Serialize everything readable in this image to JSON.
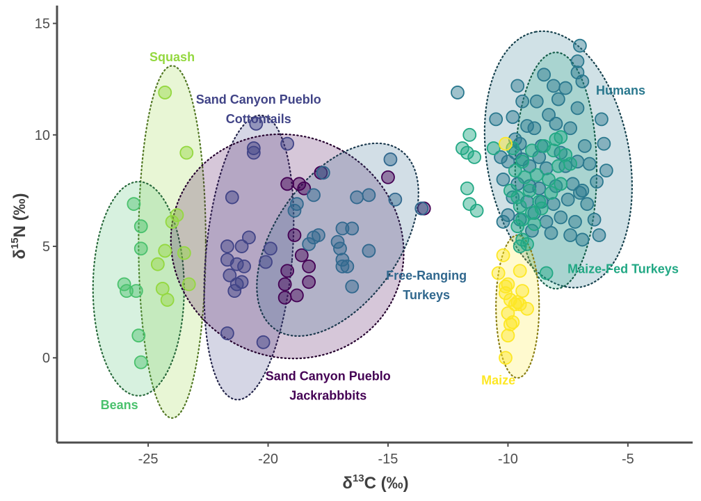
{
  "chart_data": {
    "type": "scatter",
    "xlabel": "δ13C (‰)",
    "ylabel": "δ15N (‰)",
    "xlim": [
      -28.8,
      -2.3
    ],
    "ylim": [
      -3.8,
      15.8
    ],
    "x_ticks": [
      {
        "value": -25,
        "label": "-25"
      },
      {
        "value": -20,
        "label": "-20"
      },
      {
        "value": -15,
        "label": "-15"
      },
      {
        "value": -10,
        "label": "-10"
      },
      {
        "value": -5,
        "label": "-5"
      }
    ],
    "y_ticks": [
      {
        "value": 0,
        "label": "0"
      },
      {
        "value": 5,
        "label": "5"
      },
      {
        "value": 10,
        "label": "10"
      },
      {
        "value": 15,
        "label": "15"
      }
    ],
    "grid": false,
    "legend": "none",
    "series": [
      {
        "name": "Squash",
        "color": "#94d840",
        "label": {
          "lines": [
            "Squash"
          ],
          "x": -24.0,
          "y": 13.3
        },
        "ellipse": {
          "cx": -24.0,
          "cy": 5.2,
          "rx": 1.4,
          "ry": 7.9,
          "angle": 0
        },
        "points": [
          [
            -24.3,
            11.9
          ],
          [
            -23.4,
            9.2
          ],
          [
            -24.0,
            6.1
          ],
          [
            -23.8,
            6.4
          ],
          [
            -24.3,
            4.8
          ],
          [
            -24.6,
            4.2
          ],
          [
            -24.2,
            2.6
          ],
          [
            -23.5,
            4.7
          ],
          [
            -23.3,
            3.3
          ],
          [
            -24.4,
            3.1
          ]
        ]
      },
      {
        "name": "Beans",
        "color": "#4ac16d",
        "label": {
          "lines": [
            "Beans"
          ],
          "x": -26.2,
          "y": -2.3
        },
        "ellipse": {
          "cx": -25.4,
          "cy": 3.1,
          "rx": 1.9,
          "ry": 4.8,
          "angle": 0
        },
        "points": [
          [
            -25.6,
            6.9
          ],
          [
            -25.3,
            5.9
          ],
          [
            -25.3,
            4.9
          ],
          [
            -26.0,
            3.3
          ],
          [
            -25.9,
            3.0
          ],
          [
            -25.5,
            3.0
          ],
          [
            -25.4,
            1.0
          ],
          [
            -25.3,
            -0.2
          ]
        ]
      },
      {
        "name": "Sand Canyon Pueblo Cottontails",
        "color": "#414487",
        "label": {
          "lines": [
            "Sand Canyon Pueblo",
            "Cottontails"
          ],
          "x": -20.4,
          "y": 11.4
        },
        "ellipse": {
          "cx": -20.8,
          "cy": 4.5,
          "rx": 1.8,
          "ry": 6.4,
          "angle": 5
        },
        "points": [
          [
            -20.5,
            10.5
          ],
          [
            -20.6,
            9.4
          ],
          [
            -20.6,
            9.2
          ],
          [
            -21.5,
            7.2
          ],
          [
            -21.7,
            5.0
          ],
          [
            -21.1,
            5.0
          ],
          [
            -20.8,
            5.4
          ],
          [
            -21.7,
            4.4
          ],
          [
            -21.3,
            4.2
          ],
          [
            -21.0,
            4.1
          ],
          [
            -21.6,
            3.7
          ],
          [
            -21.3,
            3.3
          ],
          [
            -21.1,
            3.4
          ],
          [
            -21.4,
            3.0
          ],
          [
            -20.1,
            4.3
          ],
          [
            -19.9,
            4.9
          ],
          [
            -20.2,
            0.7
          ],
          [
            -21.7,
            1.1
          ],
          [
            -19.2,
            9.6
          ]
        ]
      },
      {
        "name": "Sand Canyon Pueblo Jackrabbbits",
        "color": "#440154",
        "label": {
          "lines": [
            "Sand Canyon Pueblo",
            "Jackrabbbits"
          ],
          "x": -17.5,
          "y": -1.0
        },
        "ellipse": {
          "cx": -19.2,
          "cy": 5.0,
          "rx": 4.6,
          "ry": 5.3,
          "angle": -62
        },
        "points": [
          [
            -19.2,
            7.8
          ],
          [
            -18.7,
            7.8
          ],
          [
            -18.5,
            7.6
          ],
          [
            -17.8,
            8.3
          ],
          [
            -18.3,
            4.1
          ],
          [
            -18.6,
            4.6
          ],
          [
            -18.9,
            5.5
          ],
          [
            -19.2,
            3.9
          ],
          [
            -19.3,
            3.3
          ],
          [
            -19.3,
            2.7
          ],
          [
            -18.3,
            3.4
          ],
          [
            -18.8,
            2.8
          ],
          [
            -15.0,
            8.1
          ],
          [
            -13.5,
            6.7
          ]
        ]
      },
      {
        "name": "Free-Ranging Turkeys",
        "color": "#31688e",
        "label": {
          "lines": [
            "Free-Ranging",
            "Turkeys"
          ],
          "x": -13.4,
          "y": 3.5
        },
        "ellipse": {
          "cx": -17.1,
          "cy": 5.3,
          "rx": 2.6,
          "ry": 4.9,
          "angle": 35
        },
        "points": [
          [
            -16.3,
            7.2
          ],
          [
            -15.8,
            7.3
          ],
          [
            -16.5,
            5.8
          ],
          [
            -16.9,
            5.8
          ],
          [
            -17.1,
            5.2
          ],
          [
            -17.0,
            4.9
          ],
          [
            -16.9,
            4.4
          ],
          [
            -16.7,
            4.1
          ],
          [
            -16.5,
            3.2
          ],
          [
            -16.9,
            4.1
          ],
          [
            -17.9,
            5.5
          ],
          [
            -18.1,
            5.4
          ],
          [
            -18.3,
            5.1
          ],
          [
            -17.7,
            8.3
          ],
          [
            -18.1,
            7.3
          ],
          [
            -18.9,
            6.6
          ],
          [
            -15.8,
            4.8
          ],
          [
            -14.9,
            8.9
          ],
          [
            -14.7,
            7.1
          ],
          [
            -13.6,
            6.7
          ],
          [
            -18.8,
            6.9
          ]
        ]
      },
      {
        "name": "Humans",
        "color": "#2a788e",
        "label": {
          "lines": [
            "Humans"
          ],
          "x": -5.3,
          "y": 11.8
        },
        "ellipse": {
          "cx": -7.9,
          "cy": 8.9,
          "rx": 5.4,
          "ry": 3.2,
          "angle": -100
        },
        "points": [
          [
            -7.0,
            14.0
          ],
          [
            -7.1,
            13.3
          ],
          [
            -7.1,
            12.8
          ],
          [
            -8.5,
            12.7
          ],
          [
            -9.6,
            12.2
          ],
          [
            -7.6,
            12.1
          ],
          [
            -6.9,
            12.4
          ],
          [
            -8.1,
            12.2
          ],
          [
            -7.9,
            11.6
          ],
          [
            -9.4,
            11.5
          ],
          [
            -8.8,
            11.5
          ],
          [
            -8.3,
            10.9
          ],
          [
            -7.1,
            11.2
          ],
          [
            -10.5,
            10.7
          ],
          [
            -9.8,
            10.8
          ],
          [
            -9.2,
            10.4
          ],
          [
            -8.9,
            10.3
          ],
          [
            -8.0,
            10.5
          ],
          [
            -7.4,
            10.3
          ],
          [
            -6.1,
            10.7
          ],
          [
            -9.7,
            9.8
          ],
          [
            -9.5,
            9.6
          ],
          [
            -8.6,
            9.5
          ],
          [
            -7.8,
            9.2
          ],
          [
            -6.8,
            9.5
          ],
          [
            -6.0,
            9.6
          ],
          [
            -10.3,
            9.0
          ],
          [
            -10.0,
            8.8
          ],
          [
            -9.4,
            8.9
          ],
          [
            -9.1,
            8.6
          ],
          [
            -8.4,
            8.5
          ],
          [
            -7.6,
            8.6
          ],
          [
            -7.1,
            8.8
          ],
          [
            -6.6,
            8.7
          ],
          [
            -5.9,
            8.4
          ],
          [
            -10.2,
            8.0
          ],
          [
            -9.6,
            7.8
          ],
          [
            -9.1,
            7.7
          ],
          [
            -8.7,
            7.6
          ],
          [
            -8.0,
            7.7
          ],
          [
            -7.3,
            7.8
          ],
          [
            -6.9,
            7.5
          ],
          [
            -6.3,
            7.9
          ],
          [
            -9.8,
            7.2
          ],
          [
            -9.2,
            7.0
          ],
          [
            -8.6,
            7.0
          ],
          [
            -8.1,
            6.9
          ],
          [
            -7.5,
            7.1
          ],
          [
            -6.7,
            6.9
          ],
          [
            -10.0,
            6.4
          ],
          [
            -9.5,
            6.2
          ],
          [
            -8.9,
            6.5
          ],
          [
            -8.4,
            6.1
          ],
          [
            -7.8,
            6.3
          ],
          [
            -7.2,
            6.1
          ],
          [
            -6.4,
            6.2
          ],
          [
            -9.0,
            5.7
          ],
          [
            -8.2,
            5.6
          ],
          [
            -7.4,
            5.5
          ],
          [
            -6.9,
            5.3
          ],
          [
            -6.2,
            5.5
          ],
          [
            -10.2,
            6.1
          ],
          [
            -9.7,
            9.2
          ],
          [
            -8.7,
            9.0
          ],
          [
            -7.0,
            7.4
          ],
          [
            -12.1,
            11.9
          ]
        ]
      },
      {
        "name": "Maize-Fed Turkeys",
        "color": "#22a884",
        "label": {
          "lines": [
            "Maize-Fed Turkeys"
          ],
          "x": -5.2,
          "y": 3.8
        },
        "ellipse": {
          "cx": -8.0,
          "cy": 8.4,
          "rx": 1.7,
          "ry": 5.3,
          "angle": 0
        },
        "points": [
          [
            -11.9,
            9.4
          ],
          [
            -11.7,
            9.2
          ],
          [
            -11.6,
            10.0
          ],
          [
            -11.4,
            9.0
          ],
          [
            -11.7,
            7.6
          ],
          [
            -11.6,
            6.9
          ],
          [
            -11.3,
            6.6
          ],
          [
            -10.6,
            9.4
          ],
          [
            -9.8,
            9.4
          ],
          [
            -9.4,
            8.8
          ],
          [
            -9.0,
            9.3
          ],
          [
            -8.5,
            9.5
          ],
          [
            -8.0,
            9.8
          ],
          [
            -7.6,
            9.1
          ],
          [
            -9.7,
            8.4
          ],
          [
            -9.3,
            8.1
          ],
          [
            -8.8,
            8.2
          ],
          [
            -8.3,
            8.0
          ],
          [
            -7.9,
            8.6
          ],
          [
            -7.4,
            8.7
          ],
          [
            -9.9,
            7.5
          ],
          [
            -9.6,
            7.2
          ],
          [
            -9.1,
            7.5
          ],
          [
            -8.7,
            7.0
          ],
          [
            -8.2,
            7.4
          ],
          [
            -7.8,
            7.8
          ],
          [
            -9.5,
            6.8
          ],
          [
            -9.0,
            6.5
          ],
          [
            -8.6,
            6.7
          ],
          [
            -9.4,
            6.2
          ],
          [
            -8.9,
            6.0
          ],
          [
            -9.6,
            5.9
          ],
          [
            -9.4,
            5.3
          ],
          [
            -9.2,
            5.1
          ],
          [
            -9.5,
            5.0
          ],
          [
            -8.4,
            3.8
          ],
          [
            -7.8,
            9.9
          ],
          [
            -8.1,
            9.3
          ]
        ]
      },
      {
        "name": "Maize",
        "color": "#fde725",
        "label": {
          "lines": [
            "Maize"
          ],
          "x": -10.4,
          "y": -1.2
        },
        "ellipse": {
          "cx": -9.6,
          "cy": 2.3,
          "rx": 0.9,
          "ry": 3.2,
          "angle": 0
        },
        "points": [
          [
            -10.1,
            9.6
          ],
          [
            -10.2,
            4.6
          ],
          [
            -10.4,
            3.8
          ],
          [
            -9.5,
            3.9
          ],
          [
            -10.0,
            3.3
          ],
          [
            -10.1,
            3.2
          ],
          [
            -9.4,
            3.0
          ],
          [
            -9.9,
            2.6
          ],
          [
            -9.6,
            2.5
          ],
          [
            -9.5,
            2.4
          ],
          [
            -9.2,
            2.2
          ],
          [
            -10.0,
            2.0
          ],
          [
            -9.8,
            1.6
          ],
          [
            -9.9,
            1.5
          ],
          [
            -10.0,
            1.0
          ],
          [
            -10.1,
            0.0
          ],
          [
            -9.7,
            2.4
          ],
          [
            -10.1,
            2.9
          ]
        ]
      }
    ]
  }
}
